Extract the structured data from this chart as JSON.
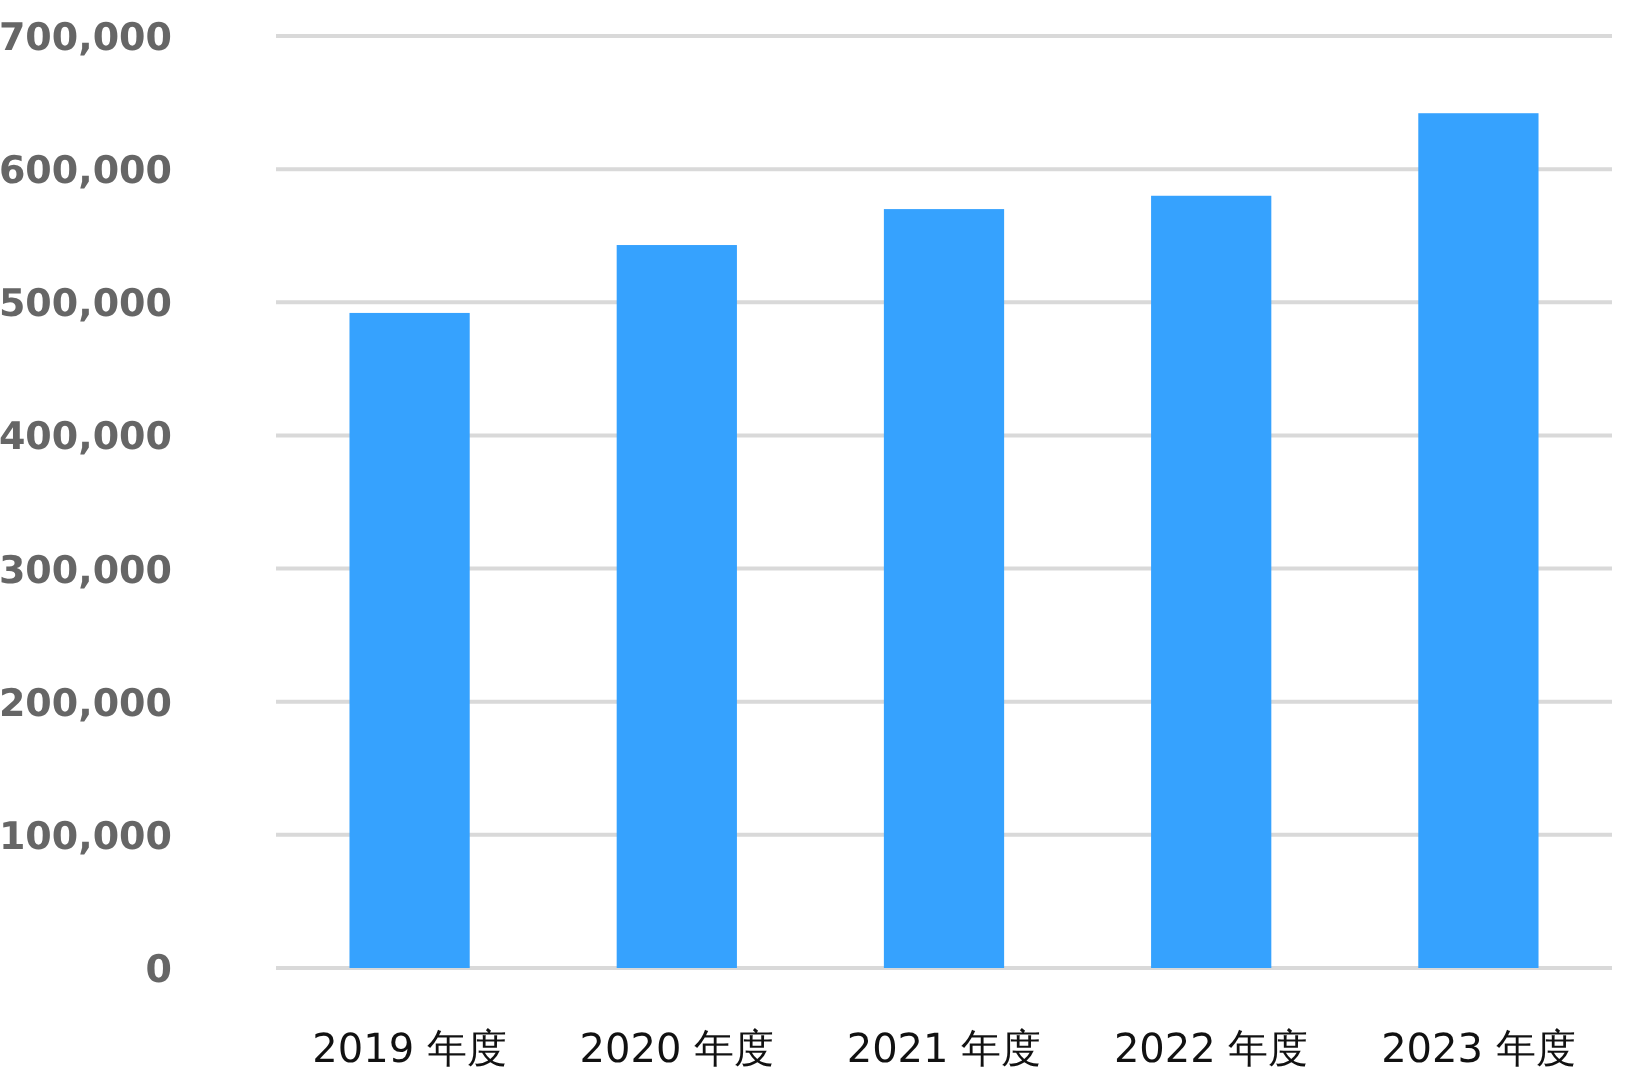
{
  "chart_data": {
    "type": "bar",
    "categories": [
      "2019 年度",
      "2020 年度",
      "2021 年度",
      "2022 年度",
      "2023 年度"
    ],
    "values": [
      492000,
      543000,
      570000,
      580000,
      642000
    ],
    "color": "#36a2fe",
    "ylim": [
      0,
      700000
    ],
    "yticks": [
      {
        "value": 0,
        "label": "0"
      },
      {
        "value": 100000,
        "label": "100,000"
      },
      {
        "value": 200000,
        "label": "200,000"
      },
      {
        "value": 300000,
        "label": "300,000"
      },
      {
        "value": 400000,
        "label": "400,000"
      },
      {
        "value": 500000,
        "label": "500,000"
      },
      {
        "value": 600000,
        "label": "600,000"
      },
      {
        "value": 700000,
        "label": "700,000"
      }
    ],
    "grid": "y",
    "legend": false
  }
}
